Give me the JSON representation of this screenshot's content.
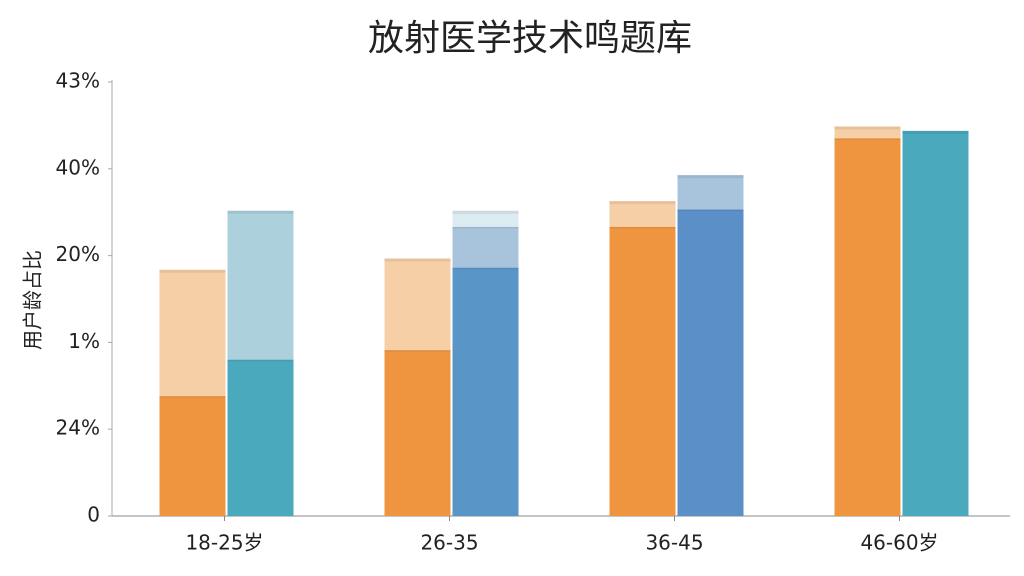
{
  "chart_data": {
    "type": "bar",
    "title": "放射医学技术鸣题库",
    "y_label": "用户龄占比",
    "categories": [
      "18-25岁",
      "26-35",
      "36-45",
      "46-60岁"
    ],
    "series": [
      {
        "stack": "a",
        "colors": [
          "#f0953f",
          "#f0953f",
          "#f0953f",
          "#f0953f"
        ],
        "values": [
          13.8,
          19.1,
          33.3,
          43.5
        ]
      },
      {
        "stack": "a",
        "colors": [
          "#f6cfa6",
          "#f6cfa6",
          "#f6cfa6",
          "#f6cfa6"
        ],
        "values": [
          14.4,
          10.4,
          2.8,
          1.2
        ]
      },
      {
        "stack": "b",
        "colors": [
          "#4aa9bd",
          "#5a95c8",
          "#5a8fc8",
          "#4aa9bd"
        ],
        "values": [
          18.0,
          28.6,
          35.3,
          44.2
        ]
      },
      {
        "stack": "b",
        "colors": [
          "#acd0dc",
          "#a8c3dc",
          "#a8c3dc",
          "#a8c3dc"
        ],
        "values": [
          17.0,
          4.7,
          3.8,
          null
        ]
      },
      {
        "stack": "b",
        "colors": [
          "#dceaf1",
          "#dceaf1",
          "#dceaf1",
          "#dceaf1"
        ],
        "values": [
          null,
          1.7,
          null,
          null
        ]
      }
    ],
    "ylim": [
      0,
      50
    ],
    "yticks": [
      0,
      {
        "value": 10,
        "label": "24%"
      },
      {
        "value": 20,
        "label": "1%"
      },
      {
        "value": 30,
        "label": "20%"
      },
      {
        "value": 40,
        "label": "40%"
      },
      {
        "value": 50,
        "label": "43%"
      }
    ],
    "grid": false
  }
}
